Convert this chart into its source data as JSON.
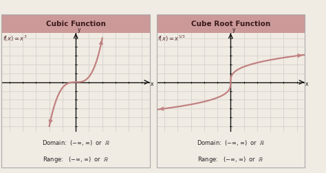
{
  "left_title": "Cubic Function",
  "right_title": "Cube Root Function",
  "left_func_label": "$f(x) = x^3$",
  "right_func_label": "$f(x) = x^{1/3}$",
  "domain_text": "Domain:  $(-\\infty,\\infty)$  or  $\\mathbb{R}$",
  "range_text": "Range:   $(-\\infty,\\infty)$  or  $\\mathbb{R}$",
  "header_bg": "#cc9999",
  "header_text_color": "#3a1a1a",
  "panel_bg": "#f0ebe3",
  "curve_color": "#c08080",
  "axis_color": "#111111",
  "grid_color": "#d0cdc8",
  "border_color": "#aaaaaa",
  "xlim": [
    -5,
    5
  ],
  "ylim": [
    -5,
    5
  ]
}
